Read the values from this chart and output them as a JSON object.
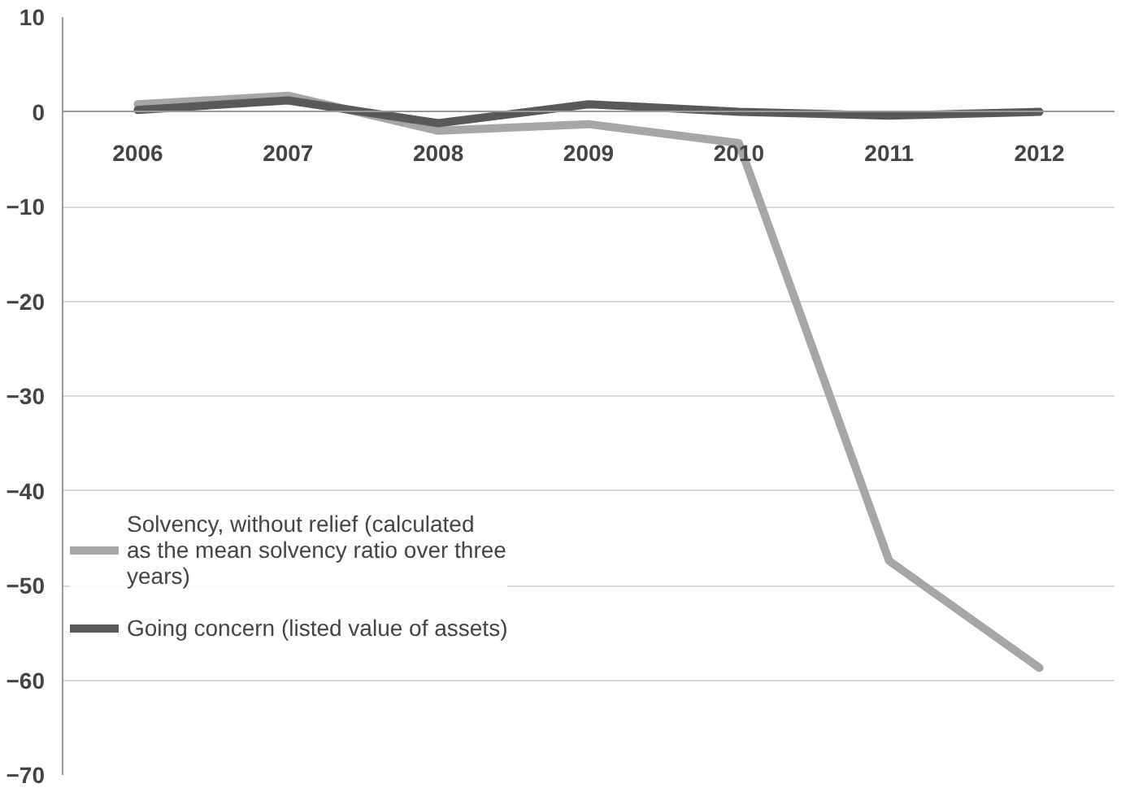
{
  "chart_data": {
    "type": "line",
    "categories": [
      "2006",
      "2007",
      "2008",
      "2009",
      "2010",
      "2011",
      "2012"
    ],
    "series": [
      {
        "name": "Solvency, without relief (calculated as the mean solvency ratio over three years)",
        "color": "#a6a6a6",
        "values": [
          0.8,
          1.7,
          -2.0,
          -1.3,
          -3.3,
          -47.4,
          -58.7
        ]
      },
      {
        "name": "Going concern (listed value of assets)",
        "color": "#595959",
        "values": [
          0.2,
          1.2,
          -1.2,
          0.8,
          0.0,
          -0.4,
          0.0
        ]
      }
    ],
    "ylim": [
      -70,
      10
    ],
    "yticks": [
      -70,
      -60,
      -50,
      -40,
      -30,
      -20,
      -10,
      0,
      10
    ],
    "grid": "y",
    "legend": "left",
    "marker": "none",
    "line_style": "solid"
  }
}
